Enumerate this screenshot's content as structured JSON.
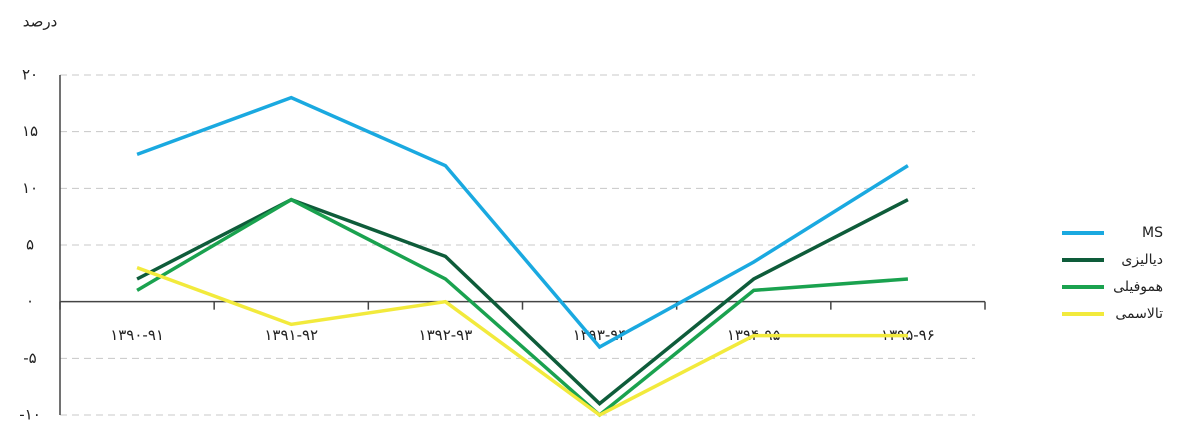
{
  "chart_data": {
    "type": "line",
    "ylabel": "درصد",
    "categories": [
      "۱۳۹۰-۹۱",
      "۱۳۹۱-۹۲",
      "۱۳۹۲-۹۳",
      "۱۳۹۳-۹۴",
      "۱۳۹۴-۹۵",
      "۱۳۹۵-۹۶"
    ],
    "series": [
      {
        "name": "MS",
        "color": "#1aa9e0",
        "values": [
          13,
          18,
          12,
          -4,
          3.5,
          12
        ]
      },
      {
        "name": "دیالیزی",
        "color": "#0e5c3a",
        "values": [
          2,
          9,
          4,
          -9,
          2,
          9
        ]
      },
      {
        "name": "هموفیلی",
        "color": "#1aa24f",
        "values": [
          1,
          9,
          2,
          -10,
          1,
          2
        ]
      },
      {
        "name": "تالاسمی",
        "color": "#f2ea3c",
        "values": [
          3,
          -2,
          0,
          -10,
          -3,
          -3
        ]
      }
    ],
    "ylim": [
      -10,
      20
    ],
    "yticks": [
      {
        "value": -10,
        "label": "-۱۰"
      },
      {
        "value": -5,
        "label": "-۵"
      },
      {
        "value": 0,
        "label": "۰"
      },
      {
        "value": 5,
        "label": "۵"
      },
      {
        "value": 10,
        "label": "۱۰"
      },
      {
        "value": 15,
        "label": "۱۵"
      },
      {
        "value": 20,
        "label": "۲۰"
      }
    ],
    "grid": true,
    "legend": "right"
  }
}
